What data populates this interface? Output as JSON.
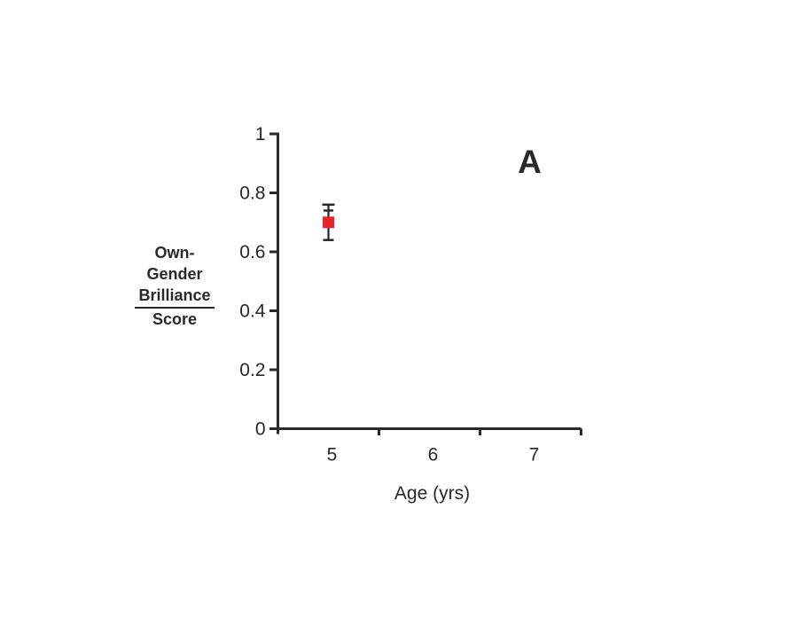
{
  "page": {
    "background_color": "#ffffff"
  },
  "chart_data": {
    "type": "scatter",
    "panel_label": "A",
    "title": "",
    "xlabel": "Age (yrs)",
    "ylabel_lines": [
      "Own-",
      "Gender",
      "Brilliance",
      "Score"
    ],
    "ylabel_underline_line_index": 2,
    "x_categories": [
      5,
      6,
      7
    ],
    "x_tick_labels": [
      "5",
      "6",
      "7"
    ],
    "y_ticks": [
      0,
      0.2,
      0.4,
      0.6,
      0.8,
      1
    ],
    "y_tick_labels": [
      "0",
      "0.2",
      "0.4",
      "0.6",
      "0.8",
      "1"
    ],
    "ylim": [
      0,
      1
    ],
    "grid": false,
    "legend": null,
    "axis_color": "#2a2829",
    "series": [
      {
        "name": "own-gender-brilliance-age5",
        "marker": "square",
        "marker_color": "#e8262b",
        "points": [
          {
            "x": 5,
            "y": 0.7,
            "upper_error_caps": [
              0.76,
              0.74
            ],
            "lower_error_cap": 0.64
          }
        ]
      }
    ]
  }
}
